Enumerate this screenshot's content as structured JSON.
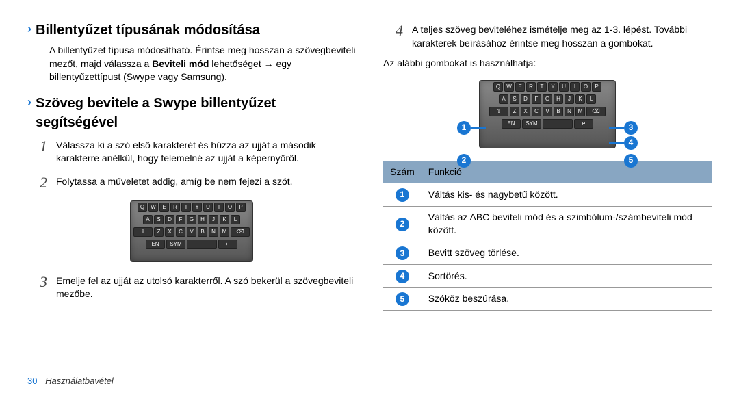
{
  "left": {
    "heading1": "Billentyűzet típusának módosítása",
    "para1_part1": "A billentyűzet típusa módosítható. Érintse meg hosszan a szövegbeviteli mezőt, majd válassza a ",
    "para1_bold": "Beviteli mód",
    "para1_part2": " lehetőséget → egy billentyűzettípust (Swype vagy Samsung).",
    "heading2": "Szöveg bevitele a Swype billentyűzet segítségével",
    "step1": "Válassza ki a szó első karakterét és húzza az ujját a második karakterre anélkül, hogy felemelné az ujját a képernyőről.",
    "step2": "Folytassa a műveletet addig, amíg be nem fejezi a szót.",
    "step3": "Emelje fel az ujját az utolsó karakterről. A szó bekerül a szövegbeviteli mezőbe."
  },
  "right": {
    "step4": "A teljes szöveg beviteléhez ismételje meg az 1-3. lépést. További karakterek beírásához érintse meg hosszan a gombokat.",
    "para2": "Az alábbi gombokat is használhatja:",
    "table": {
      "header": {
        "col1": "Szám",
        "col2": "Funkció"
      },
      "rows": [
        {
          "fn": "Váltás kis- és nagybetű között."
        },
        {
          "fn": "Váltás az ABC beviteli mód és a szimbólum-/számbeviteli mód között."
        },
        {
          "fn": "Bevitt szöveg törlése."
        },
        {
          "fn": "Sortörés."
        },
        {
          "fn": "Szóköz beszúrása."
        }
      ]
    }
  },
  "footer": {
    "page": "30",
    "section": "Használatbavétel"
  },
  "keyboard_rows": [
    [
      "Q",
      "W",
      "E",
      "R",
      "T",
      "Y",
      "U",
      "I",
      "O",
      "P"
    ],
    [
      "A",
      "S",
      "D",
      "F",
      "G",
      "H",
      "J",
      "K",
      "L"
    ],
    [
      "⇧",
      "Z",
      "X",
      "C",
      "V",
      "B",
      "N",
      "M",
      "⌫"
    ],
    [
      "EN",
      "SYM",
      "␣",
      "↵"
    ]
  ],
  "colors": {
    "accent": "#1976d2",
    "th_bg": "#88a6c2"
  }
}
